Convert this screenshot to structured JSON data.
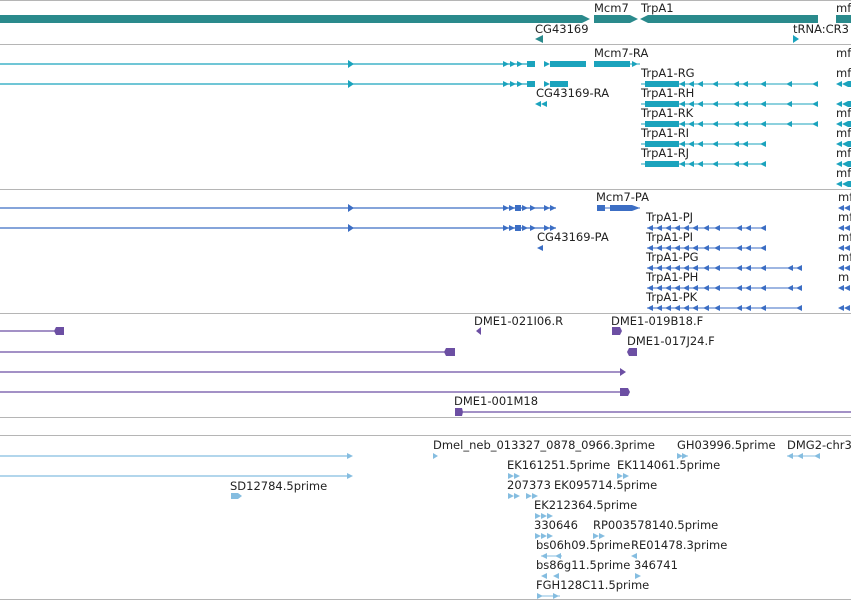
{
  "colors": {
    "gene": "#2a8a8c",
    "transcript": "#1ba3bd",
    "protein": "#3c6ec4",
    "clone": "#6c4fa3",
    "est": "#85bde0",
    "divider": "#b5b5b5"
  },
  "tracks": {
    "genes": {
      "labels": [
        "Mcm7",
        "TrpA1",
        "mf",
        "CG43169",
        "tRNA:CR3"
      ]
    },
    "transcripts": {
      "labels": [
        "Mcm7-RA",
        "TrpA1-RG",
        "CG43169-RA",
        "TrpA1-RH",
        "TrpA1-RK",
        "TrpA1-RI",
        "TrpA1-RJ",
        "mf",
        "mf",
        "mf",
        "mf",
        "mf",
        "mf"
      ]
    },
    "proteins": {
      "labels": [
        "Mcm7-PA",
        "TrpA1-PJ",
        "CG43169-PA",
        "TrpA1-PI",
        "TrpA1-PG",
        "TrpA1-PH",
        "TrpA1-PK",
        "mf",
        "mf",
        "mf",
        "mf",
        "m"
      ]
    },
    "clones": {
      "labels": [
        "DME1-021I06.R",
        "DME1-019B18.F",
        "DME1-017J24.F",
        "DME1-001M18"
      ]
    },
    "ests": {
      "labels": [
        "Dmel_neb_013327_0878_0966.3prime",
        "GH03996.5prime",
        "DMG2-chr3",
        "EK161251.5prime",
        "EK114061.5prime",
        "SD12784.5prime",
        "207373",
        "EK095714.5prime",
        "EK212364.5prime",
        "330646",
        "RP003578140.5prime",
        "bs06h09.5prime",
        "RE01478.3prime",
        "bs86g11.5prime",
        "346741",
        "FGH128C11.5prime"
      ]
    }
  }
}
